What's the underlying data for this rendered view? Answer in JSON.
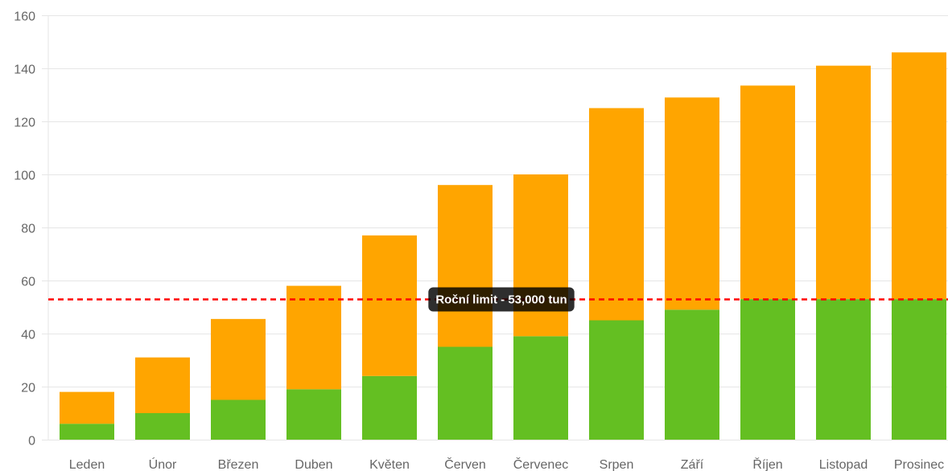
{
  "chart_data": {
    "type": "bar",
    "stacked": true,
    "categories": [
      "Leden",
      "Únor",
      "Březen",
      "Duben",
      "Květen",
      "Červen",
      "Červenec",
      "Srpen",
      "Září",
      "Říjen",
      "Listopad",
      "Prosinec"
    ],
    "series": [
      {
        "color": "#64bf22",
        "values": [
          6,
          10,
          15,
          19,
          24,
          35,
          39,
          45,
          49,
          53,
          53,
          53
        ]
      },
      {
        "color": "#ffa500",
        "values": [
          12,
          21,
          30.5,
          39,
          53,
          61,
          61,
          80,
          80,
          80.5,
          88,
          93
        ]
      }
    ],
    "ylim": [
      0,
      160
    ],
    "yticks": [
      0,
      20,
      40,
      60,
      80,
      100,
      120,
      140,
      160
    ],
    "grid": true,
    "annotation": {
      "type": "horizontal-line",
      "value": 53,
      "label": "Roční limit - 53,000 tun",
      "color": "#ff0000",
      "style": "dashed"
    }
  }
}
